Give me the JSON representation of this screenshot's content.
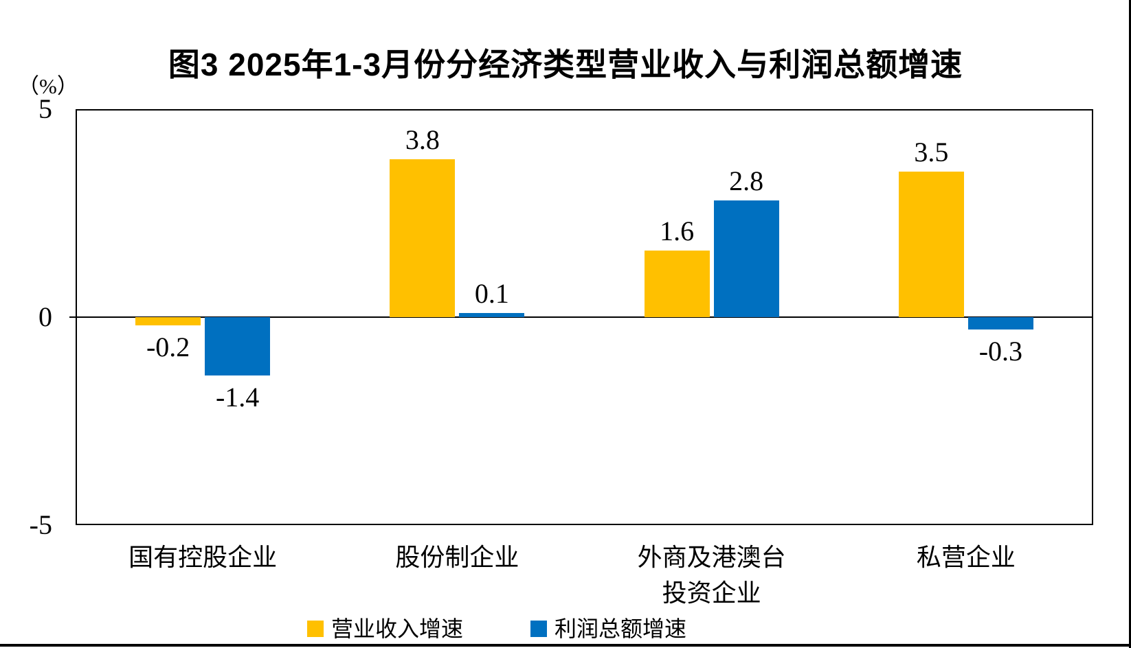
{
  "page": {
    "background": "#FFFFFF",
    "frame_border_color": "#000000"
  },
  "chart_data": {
    "type": "bar",
    "title": "图3 2025年1-3月份分经济类型营业收入与利润总额增速",
    "unit_label": "（%）",
    "categories": [
      "国有控股企业",
      "股份制企业",
      "外商及港澳台投资企业",
      "私营企业"
    ],
    "category_display_lines": [
      [
        "国有控股企业"
      ],
      [
        "股份制企业"
      ],
      [
        "外商及港澳台",
        "投资企业"
      ],
      [
        "私营企业"
      ]
    ],
    "series": [
      {
        "name": "营业收入增速",
        "color": "#FFC000",
        "values": [
          -0.2,
          3.8,
          1.6,
          3.5
        ]
      },
      {
        "name": "利润总额增速",
        "color": "#0070C0",
        "values": [
          -1.4,
          0.1,
          2.8,
          -0.3
        ]
      }
    ],
    "data_labels": {
      "营业收入增速": [
        "-0.2",
        "3.8",
        "1.6",
        "3.5"
      ],
      "利润总额增速": [
        "-1.4",
        "0.1",
        "2.8",
        "-0.3"
      ]
    },
    "ylim": [
      -5,
      5
    ],
    "yticks": [
      "5",
      "0",
      "-5"
    ],
    "ytick_values": [
      5,
      0,
      -5
    ],
    "grid": false,
    "legend_position": "bottom",
    "axis_color": "#000000",
    "text_color": "#000000"
  }
}
